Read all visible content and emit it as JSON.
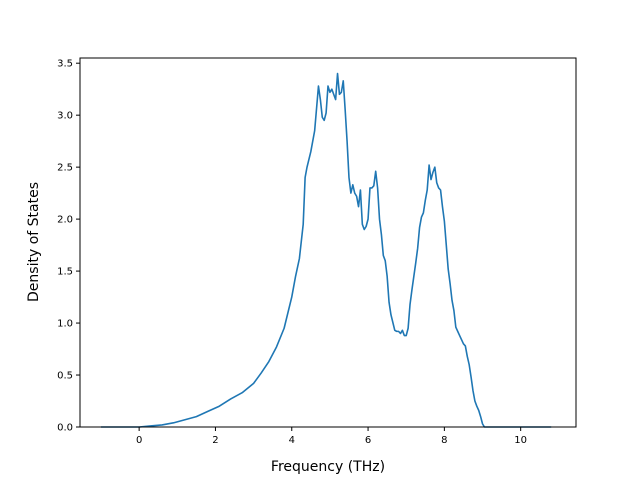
{
  "chart_data": {
    "type": "line",
    "xlabel": "Frequency (THz)",
    "ylabel": "Density of States",
    "xlim": [
      -1.55,
      11.45
    ],
    "ylim": [
      0,
      3.55
    ],
    "xticks": [
      0,
      2,
      4,
      6,
      8,
      10
    ],
    "yticks": [
      0.0,
      0.5,
      1.0,
      1.5,
      2.0,
      2.5,
      3.0,
      3.5
    ],
    "xtick_labels": [
      "0",
      "2",
      "4",
      "6",
      "8",
      "10"
    ],
    "ytick_labels": [
      "0.0",
      "0.5",
      "1.0",
      "1.5",
      "2.0",
      "2.5",
      "3.0",
      "3.5"
    ],
    "grid": false,
    "line_color": "#1f77b4",
    "series": [
      {
        "x": [
          -1.0,
          -0.5,
          0.0,
          0.3,
          0.6,
          0.9,
          1.2,
          1.5,
          1.8,
          2.1,
          2.4,
          2.7,
          3.0,
          3.2,
          3.4,
          3.6,
          3.8,
          4.0,
          4.1,
          4.2,
          4.3,
          4.35,
          4.4,
          4.5,
          4.6,
          4.7,
          4.75,
          4.8,
          4.85,
          4.9,
          4.95,
          5.0,
          5.05,
          5.1,
          5.15,
          5.2,
          5.25,
          5.3,
          5.35,
          5.4,
          5.45,
          5.5,
          5.55,
          5.6,
          5.65,
          5.7,
          5.75,
          5.8,
          5.85,
          5.9,
          5.95,
          6.0,
          6.05,
          6.1,
          6.15,
          6.2,
          6.25,
          6.3,
          6.35,
          6.4,
          6.45,
          6.5,
          6.55,
          6.6,
          6.7,
          6.75,
          6.8,
          6.85,
          6.9,
          6.95,
          7.0,
          7.05,
          7.1,
          7.15,
          7.2,
          7.25,
          7.3,
          7.35,
          7.4,
          7.45,
          7.5,
          7.55,
          7.6,
          7.65,
          7.7,
          7.75,
          7.8,
          7.85,
          7.9,
          7.95,
          8.0,
          8.05,
          8.1,
          8.15,
          8.2,
          8.25,
          8.3,
          8.35,
          8.4,
          8.45,
          8.5,
          8.55,
          8.6,
          8.65,
          8.7,
          8.75,
          8.8,
          8.85,
          8.9,
          8.95,
          9.0,
          9.05,
          9.1,
          9.15,
          9.2,
          9.25,
          9.3,
          9.35,
          9.4,
          9.45,
          9.5,
          9.55,
          9.6,
          9.65,
          9.7,
          9.75,
          9.8,
          9.85,
          9.9,
          10.0,
          10.2,
          10.5,
          10.8
        ],
        "y": [
          0.0,
          0.0,
          0.0,
          0.01,
          0.02,
          0.04,
          0.07,
          0.1,
          0.15,
          0.2,
          0.27,
          0.33,
          0.42,
          0.52,
          0.63,
          0.77,
          0.95,
          1.25,
          1.45,
          1.62,
          1.95,
          2.4,
          2.5,
          2.65,
          2.85,
          3.28,
          3.15,
          2.98,
          2.95,
          3.02,
          3.28,
          3.22,
          3.25,
          3.2,
          3.15,
          3.4,
          3.2,
          3.22,
          3.33,
          3.05,
          2.75,
          2.4,
          2.25,
          2.33,
          2.25,
          2.22,
          2.12,
          2.28,
          1.95,
          1.9,
          1.93,
          2.0,
          2.3,
          2.3,
          2.32,
          2.46,
          2.3,
          2.0,
          1.85,
          1.65,
          1.6,
          1.45,
          1.2,
          1.08,
          0.93,
          0.92,
          0.92,
          0.9,
          0.93,
          0.88,
          0.88,
          0.95,
          1.18,
          1.32,
          1.45,
          1.58,
          1.72,
          1.92,
          2.02,
          2.06,
          2.18,
          2.28,
          2.52,
          2.38,
          2.45,
          2.5,
          2.35,
          2.3,
          2.28,
          2.12,
          1.98,
          1.75,
          1.52,
          1.38,
          1.22,
          1.12,
          0.96,
          0.92,
          0.88,
          0.84,
          0.8,
          0.78,
          0.68,
          0.6,
          0.48,
          0.35,
          0.25,
          0.2,
          0.16,
          0.1,
          0.03,
          0.0,
          0.0,
          0.0,
          0.0,
          0.0,
          0.0,
          0.0,
          0.0,
          0.0,
          0.0,
          0.0,
          0.0,
          0.0,
          0.0,
          0.0,
          0.0,
          0.0,
          0.0,
          0.0,
          0.0,
          0.0,
          0.0
        ]
      }
    ]
  }
}
